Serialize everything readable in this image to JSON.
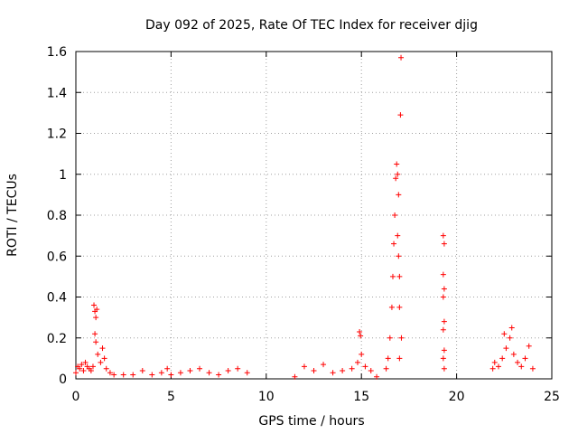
{
  "chart_data": {
    "type": "scatter",
    "title": "Day 092 of 2025, Rate Of TEC Index for receiver djig",
    "xlabel": "GPS time / hours",
    "ylabel": "ROTI / TECUs",
    "xlim": [
      0,
      25
    ],
    "ylim": [
      0,
      1.6
    ],
    "xticks": [
      "0",
      "5",
      "10",
      "15",
      "20",
      "25"
    ],
    "yticks": [
      "0",
      "0.2",
      "0.4",
      "0.6",
      "0.8",
      "1",
      "1.2",
      "1.4",
      "1.6"
    ],
    "grid": true,
    "marker": "+",
    "color": "#ff0000",
    "series": [
      {
        "points": [
          [
            0.0,
            0.03
          ],
          [
            0.1,
            0.06
          ],
          [
            0.2,
            0.05
          ],
          [
            0.3,
            0.07
          ],
          [
            0.4,
            0.04
          ],
          [
            0.5,
            0.08
          ],
          [
            0.6,
            0.06
          ],
          [
            0.7,
            0.05
          ],
          [
            0.8,
            0.04
          ],
          [
            0.9,
            0.06
          ],
          [
            0.95,
            0.36
          ],
          [
            1.0,
            0.33
          ],
          [
            1.05,
            0.3
          ],
          [
            1.1,
            0.34
          ],
          [
            1.0,
            0.22
          ],
          [
            1.05,
            0.18
          ],
          [
            1.15,
            0.12
          ],
          [
            1.3,
            0.08
          ],
          [
            1.4,
            0.15
          ],
          [
            1.5,
            0.1
          ],
          [
            1.6,
            0.05
          ],
          [
            1.8,
            0.03
          ],
          [
            2.0,
            0.02
          ],
          [
            2.5,
            0.02
          ],
          [
            3.0,
            0.02
          ],
          [
            3.5,
            0.04
          ],
          [
            4.0,
            0.02
          ],
          [
            4.5,
            0.03
          ],
          [
            4.8,
            0.05
          ],
          [
            5.0,
            0.02
          ],
          [
            5.5,
            0.03
          ],
          [
            6.0,
            0.04
          ],
          [
            6.5,
            0.05
          ],
          [
            7.0,
            0.03
          ],
          [
            7.5,
            0.02
          ],
          [
            8.0,
            0.04
          ],
          [
            8.5,
            0.05
          ],
          [
            9.0,
            0.03
          ],
          [
            11.5,
            0.01
          ],
          [
            12.0,
            0.06
          ],
          [
            12.5,
            0.04
          ],
          [
            13.0,
            0.07
          ],
          [
            13.5,
            0.03
          ],
          [
            14.0,
            0.04
          ],
          [
            14.5,
            0.05
          ],
          [
            14.8,
            0.08
          ],
          [
            14.9,
            0.23
          ],
          [
            14.95,
            0.21
          ],
          [
            15.0,
            0.12
          ],
          [
            15.2,
            0.06
          ],
          [
            15.5,
            0.04
          ],
          [
            15.8,
            0.01
          ],
          [
            16.3,
            0.05
          ],
          [
            16.4,
            0.1
          ],
          [
            16.5,
            0.2
          ],
          [
            16.6,
            0.35
          ],
          [
            16.65,
            0.5
          ],
          [
            16.7,
            0.66
          ],
          [
            16.75,
            0.8
          ],
          [
            16.8,
            0.98
          ],
          [
            16.85,
            1.05
          ],
          [
            16.9,
            1.0
          ],
          [
            16.95,
            0.9
          ],
          [
            16.9,
            0.7
          ],
          [
            16.95,
            0.6
          ],
          [
            17.0,
            0.5
          ],
          [
            17.0,
            0.35
          ],
          [
            17.05,
            1.29
          ],
          [
            17.08,
            1.57
          ],
          [
            17.1,
            0.2
          ],
          [
            17.0,
            0.1
          ],
          [
            19.3,
            0.7
          ],
          [
            19.35,
            0.66
          ],
          [
            19.3,
            0.51
          ],
          [
            19.35,
            0.44
          ],
          [
            19.3,
            0.4
          ],
          [
            19.35,
            0.28
          ],
          [
            19.3,
            0.24
          ],
          [
            19.35,
            0.14
          ],
          [
            19.3,
            0.1
          ],
          [
            19.35,
            0.05
          ],
          [
            21.9,
            0.05
          ],
          [
            22.0,
            0.08
          ],
          [
            22.2,
            0.06
          ],
          [
            22.4,
            0.1
          ],
          [
            22.5,
            0.22
          ],
          [
            22.6,
            0.15
          ],
          [
            22.8,
            0.2
          ],
          [
            22.9,
            0.25
          ],
          [
            23.0,
            0.12
          ],
          [
            23.2,
            0.08
          ],
          [
            23.4,
            0.06
          ],
          [
            23.6,
            0.1
          ],
          [
            23.8,
            0.16
          ],
          [
            24.0,
            0.05
          ]
        ]
      }
    ]
  }
}
